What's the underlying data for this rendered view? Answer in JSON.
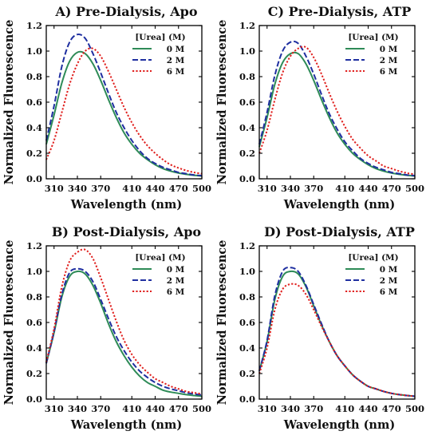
{
  "chart_data": [
    {
      "type": "line",
      "title": "A) Pre-Dialysis, Apo",
      "xlabel": "Wavelength (nm)",
      "ylabel": "Normalized Fluorescence",
      "xlim": [
        300,
        500
      ],
      "ylim": [
        0,
        1.2
      ],
      "xticks": [
        "310",
        "340",
        "370",
        "410",
        "440",
        "470",
        "500"
      ],
      "yticks": [
        "0.0",
        "0.2",
        "0.4",
        "0.6",
        "0.8",
        "1.0",
        "1.2"
      ],
      "legend_title": "[Urea] (M)",
      "legend_position": "top-right",
      "x": [
        300,
        310,
        320,
        330,
        340,
        350,
        360,
        370,
        380,
        390,
        400,
        410,
        420,
        430,
        440,
        450,
        460,
        470,
        480,
        490,
        500
      ],
      "series": [
        {
          "name": "0 M",
          "color": "#2e8b57",
          "style": "solid",
          "values": [
            0.27,
            0.5,
            0.75,
            0.92,
            0.99,
            0.98,
            0.9,
            0.77,
            0.62,
            0.48,
            0.36,
            0.27,
            0.2,
            0.15,
            0.11,
            0.08,
            0.06,
            0.045,
            0.035,
            0.027,
            0.022
          ]
        },
        {
          "name": "2 M",
          "color": "#1f2fa0",
          "style": "dash",
          "values": [
            0.3,
            0.57,
            0.88,
            1.07,
            1.13,
            1.1,
            0.98,
            0.83,
            0.67,
            0.52,
            0.4,
            0.3,
            0.22,
            0.16,
            0.12,
            0.09,
            0.07,
            0.05,
            0.04,
            0.03,
            0.025
          ]
        },
        {
          "name": "6 M",
          "color": "#e0201e",
          "style": "dot",
          "values": [
            0.15,
            0.3,
            0.52,
            0.74,
            0.9,
            1.0,
            1.02,
            0.96,
            0.84,
            0.7,
            0.56,
            0.44,
            0.34,
            0.26,
            0.2,
            0.15,
            0.11,
            0.085,
            0.065,
            0.05,
            0.04
          ]
        }
      ]
    },
    {
      "type": "line",
      "title": "C) Pre-Dialysis, ATP",
      "xlabel": "Wavelength (nm)",
      "ylabel": "Normalized Fluorescence",
      "xlim": [
        300,
        500
      ],
      "ylim": [
        0,
        1.2
      ],
      "xticks": [
        "310",
        "340",
        "370",
        "410",
        "440",
        "470",
        "500"
      ],
      "yticks": [
        "0.0",
        "0.2",
        "0.4",
        "0.6",
        "0.8",
        "1.0",
        "1.2"
      ],
      "legend_title": "[Urea] (M)",
      "legend_position": "top-right",
      "x": [
        300,
        310,
        320,
        330,
        340,
        350,
        360,
        370,
        380,
        390,
        400,
        410,
        420,
        430,
        440,
        450,
        460,
        470,
        480,
        490,
        500
      ],
      "series": [
        {
          "name": "0 M",
          "color": "#2e8b57",
          "style": "solid",
          "values": [
            0.25,
            0.48,
            0.74,
            0.91,
            0.98,
            0.98,
            0.9,
            0.77,
            0.62,
            0.48,
            0.36,
            0.27,
            0.2,
            0.15,
            0.11,
            0.08,
            0.06,
            0.045,
            0.035,
            0.027,
            0.022
          ]
        },
        {
          "name": "2 M",
          "color": "#1f2fa0",
          "style": "dash",
          "values": [
            0.27,
            0.52,
            0.81,
            1.0,
            1.07,
            1.06,
            0.96,
            0.82,
            0.66,
            0.51,
            0.39,
            0.29,
            0.22,
            0.16,
            0.12,
            0.09,
            0.07,
            0.05,
            0.04,
            0.03,
            0.025
          ]
        },
        {
          "name": "6 M",
          "color": "#e0201e",
          "style": "dot",
          "values": [
            0.2,
            0.38,
            0.62,
            0.83,
            0.96,
            1.02,
            1.03,
            0.95,
            0.82,
            0.67,
            0.53,
            0.41,
            0.31,
            0.24,
            0.18,
            0.14,
            0.1,
            0.08,
            0.06,
            0.045,
            0.035
          ]
        }
      ]
    },
    {
      "type": "line",
      "title": "B) Post-Dialysis, Apo",
      "xlabel": "Wavelength (nm)",
      "ylabel": "Normalized Fluorescence",
      "xlim": [
        300,
        500
      ],
      "ylim": [
        0,
        1.2
      ],
      "xticks": [
        "310",
        "340",
        "370",
        "410",
        "440",
        "470",
        "500"
      ],
      "yticks": [
        "0.0",
        "0.2",
        "0.4",
        "0.6",
        "0.8",
        "1.0",
        "1.2"
      ],
      "legend_title": "[Urea] (M)",
      "legend_position": "top-right",
      "x": [
        300,
        310,
        320,
        330,
        340,
        350,
        360,
        370,
        380,
        390,
        400,
        410,
        420,
        430,
        440,
        450,
        460,
        470,
        480,
        490,
        500
      ],
      "series": [
        {
          "name": "0 M",
          "color": "#2e8b57",
          "style": "solid",
          "values": [
            0.28,
            0.52,
            0.8,
            0.96,
            1.0,
            0.98,
            0.89,
            0.75,
            0.59,
            0.45,
            0.34,
            0.25,
            0.18,
            0.13,
            0.1,
            0.07,
            0.055,
            0.045,
            0.035,
            0.028,
            0.022
          ]
        },
        {
          "name": "2 M",
          "color": "#1f2fa0",
          "style": "dash",
          "values": [
            0.28,
            0.53,
            0.82,
            0.99,
            1.02,
            1.0,
            0.92,
            0.78,
            0.63,
            0.49,
            0.38,
            0.29,
            0.22,
            0.17,
            0.13,
            0.1,
            0.08,
            0.065,
            0.05,
            0.04,
            0.032
          ]
        },
        {
          "name": "6 M",
          "color": "#e0201e",
          "style": "dot",
          "values": [
            0.29,
            0.55,
            0.88,
            1.08,
            1.15,
            1.17,
            1.1,
            0.95,
            0.78,
            0.61,
            0.46,
            0.35,
            0.27,
            0.21,
            0.16,
            0.13,
            0.1,
            0.08,
            0.06,
            0.05,
            0.04
          ]
        }
      ]
    },
    {
      "type": "line",
      "title": "D) Post-Dialysis, ATP",
      "xlabel": "Wavelength (nm)",
      "ylabel": "Normalized Fluorescence",
      "xlim": [
        300,
        500
      ],
      "ylim": [
        0,
        1.2
      ],
      "xticks": [
        "310",
        "340",
        "370",
        "410",
        "440",
        "470",
        "500"
      ],
      "yticks": [
        "0.0",
        "0.2",
        "0.4",
        "0.6",
        "0.8",
        "1.0",
        "1.2"
      ],
      "legend_title": "[Urea] (M)",
      "legend_position": "top-right",
      "x": [
        300,
        310,
        320,
        330,
        340,
        350,
        360,
        370,
        380,
        390,
        400,
        410,
        420,
        430,
        440,
        450,
        460,
        470,
        480,
        490,
        500
      ],
      "series": [
        {
          "name": "0 M",
          "color": "#2e8b57",
          "style": "solid",
          "values": [
            0.22,
            0.45,
            0.78,
            0.96,
            1.0,
            0.98,
            0.88,
            0.73,
            0.58,
            0.45,
            0.34,
            0.26,
            0.19,
            0.14,
            0.1,
            0.08,
            0.06,
            0.045,
            0.035,
            0.028,
            0.022
          ]
        },
        {
          "name": "2 M",
          "color": "#1f2fa0",
          "style": "dash",
          "values": [
            0.22,
            0.46,
            0.81,
            1.0,
            1.03,
            1.0,
            0.89,
            0.74,
            0.59,
            0.45,
            0.34,
            0.26,
            0.19,
            0.14,
            0.1,
            0.08,
            0.06,
            0.045,
            0.035,
            0.028,
            0.022
          ]
        },
        {
          "name": "6 M",
          "color": "#e0201e",
          "style": "dot",
          "values": [
            0.2,
            0.4,
            0.7,
            0.86,
            0.9,
            0.89,
            0.82,
            0.7,
            0.57,
            0.45,
            0.34,
            0.26,
            0.19,
            0.14,
            0.1,
            0.08,
            0.06,
            0.045,
            0.035,
            0.028,
            0.022
          ]
        }
      ]
    }
  ]
}
